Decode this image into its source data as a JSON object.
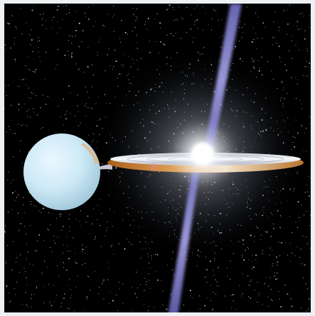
{
  "scene": {
    "colors": {
      "space": "#000000",
      "frame": "#eef1f4",
      "star": "#e6f2ff",
      "jet": "#8a86d6",
      "core_glow": "#ffffff",
      "disk_light": "#e9ecf3",
      "disk_rim": "#c27a2a",
      "companion_star": "#cfeaf7"
    },
    "icons": [
      "companion-star",
      "accretion-disk",
      "relativistic-jet",
      "compact-object-glow",
      "starfield"
    ]
  }
}
